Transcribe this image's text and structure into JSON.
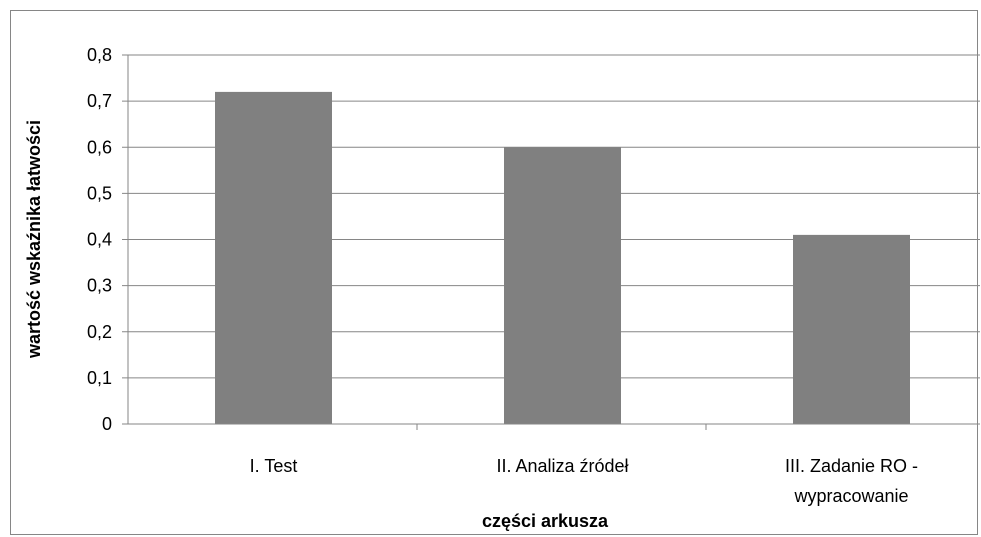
{
  "chart_data": {
    "type": "bar",
    "title": "",
    "xlabel": "części arkusza",
    "ylabel": "wartość wskaźnika łatwości",
    "categories": [
      [
        "I. Test"
      ],
      [
        "II. Analiza źródeł"
      ],
      [
        "III. Zadanie RO -",
        "wypracowanie"
      ]
    ],
    "values": [
      0.72,
      0.6,
      0.41
    ],
    "ylim": [
      0,
      0.8
    ],
    "yticks": [
      "0",
      "0,1",
      "0,2",
      "0,3",
      "0,4",
      "0,5",
      "0,6",
      "0,7",
      "0,8"
    ],
    "grid": true,
    "legend": "none",
    "bar_color": "#808080",
    "grid_color": "#868686"
  }
}
